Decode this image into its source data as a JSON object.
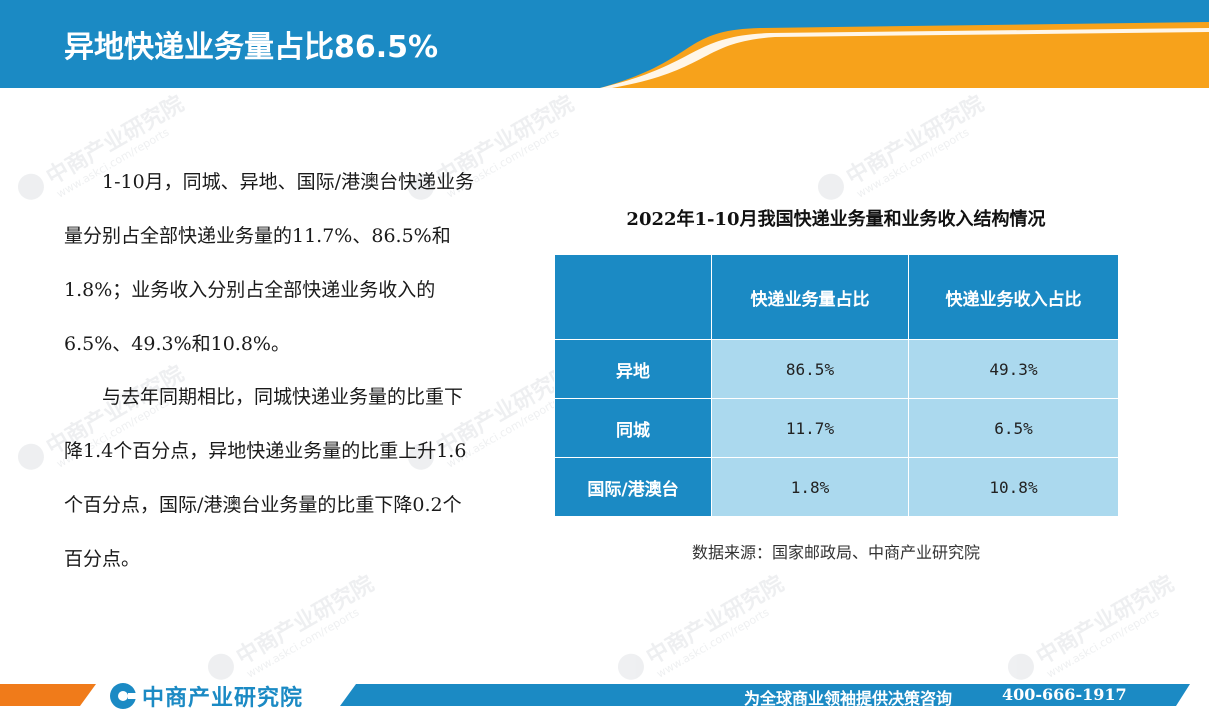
{
  "header": {
    "title": "异地快递业务量占比86.5%"
  },
  "colors": {
    "primary_blue": "#1b8ac4",
    "accent_orange": "#f7a21b",
    "cell_light_blue": "#abd9ee"
  },
  "body": {
    "paragraph_1": "1-10月，同城、异地、国际/港澳台快递业务量分别占全部快递业务量的11.7%、86.5%和1.8%；业务收入分别占全部快递业务收入的6.5%、49.3%和10.8%。",
    "paragraph_2": "与去年同期相比，同城快递业务量的比重下降1.4个百分点，异地快递业务量的比重上升1.6个百分点，国际/港澳台业务量的比重下降0.2个百分点。"
  },
  "table": {
    "title": "2022年1-10月我国快递业务量和业务收入结构情况",
    "header": {
      "col0": "",
      "col1": "快递业务量占比",
      "col2": "快递业务收入占比"
    },
    "rows": [
      {
        "label": "异地",
        "volume_share": "86.5%",
        "revenue_share": "49.3%"
      },
      {
        "label": "同城",
        "volume_share": "11.7%",
        "revenue_share": "6.5%"
      },
      {
        "label": "国际/港澳台",
        "volume_share": "1.8%",
        "revenue_share": "10.8%"
      }
    ],
    "source": "数据来源：国家邮政局、中商产业研究院"
  },
  "footer": {
    "logo_text": "中商产业研究院",
    "slogan": "为全球商业领袖提供决策咨询",
    "phone": "400-666-1917"
  },
  "watermark": {
    "text": "中商产业研究院",
    "url_text": "www.askci.com/reports"
  },
  "icons": {
    "logo": "zhongshang-logo-icon"
  }
}
